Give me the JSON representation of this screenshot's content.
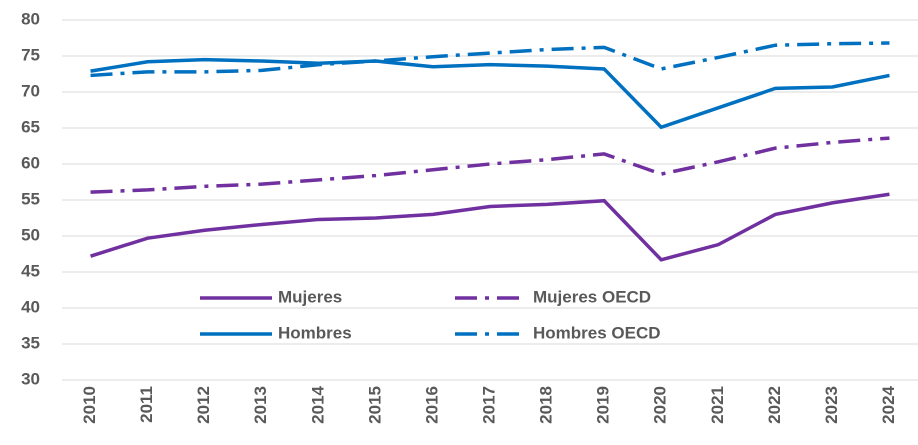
{
  "chart_data": {
    "type": "line",
    "categories": [
      "2010",
      "2011",
      "2012",
      "2013",
      "2014",
      "2015",
      "2016",
      "2017",
      "2018",
      "2019",
      "2020",
      "2021",
      "2022",
      "2023",
      "2024"
    ],
    "series": [
      {
        "name": "Mujeres",
        "color": "#7030a0",
        "style": "solid",
        "values": [
          47.2,
          49.7,
          50.8,
          51.6,
          52.3,
          52.5,
          53.0,
          54.1,
          54.4,
          54.9,
          46.7,
          48.8,
          53.0,
          54.6,
          55.8
        ]
      },
      {
        "name": "Mujeres OECD",
        "color": "#7030a0",
        "style": "dashdot",
        "values": [
          56.1,
          56.4,
          56.9,
          57.2,
          57.8,
          58.4,
          59.2,
          60.0,
          60.6,
          61.4,
          58.6,
          60.3,
          62.2,
          63.0,
          63.6
        ]
      },
      {
        "name": "Hombres",
        "color": "#0070c0",
        "style": "solid",
        "values": [
          72.9,
          74.2,
          74.5,
          74.3,
          74.0,
          74.3,
          73.5,
          73.8,
          73.6,
          73.2,
          65.1,
          67.8,
          70.5,
          70.7,
          72.3
        ]
      },
      {
        "name": "Hombres OECD",
        "color": "#0070c0",
        "style": "dashdot",
        "values": [
          72.3,
          72.8,
          72.8,
          73.0,
          73.8,
          74.3,
          74.9,
          75.4,
          75.9,
          76.2,
          73.2,
          74.8,
          76.5,
          76.7,
          76.8
        ]
      }
    ],
    "ylim": [
      30,
      80
    ],
    "yticks": [
      30,
      35,
      40,
      45,
      50,
      55,
      60,
      65,
      70,
      75,
      80
    ],
    "grid": true,
    "legend": "lower center"
  }
}
